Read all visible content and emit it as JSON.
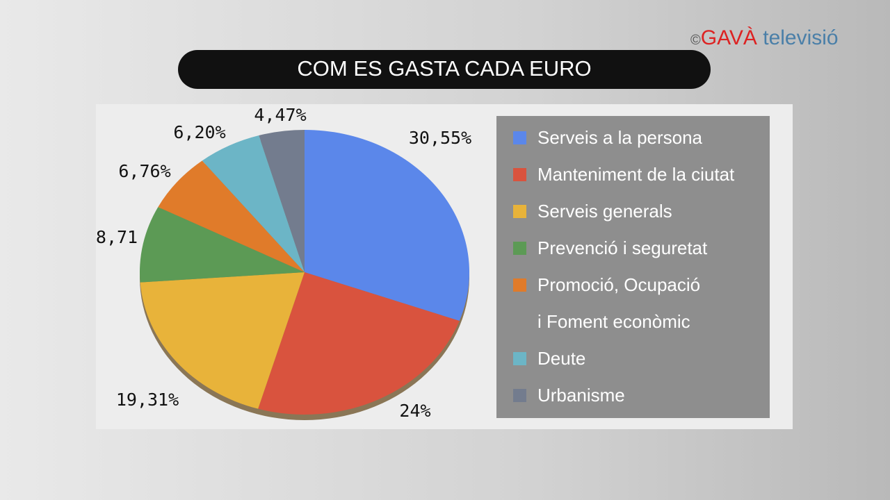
{
  "logo": {
    "symbol": "©",
    "brand": "GAVÀ",
    "suffix": "televisió"
  },
  "chart_data": {
    "type": "pie",
    "title": "COM ES GASTA CADA EURO",
    "categories": [
      "Serveis a la persona",
      "Manteniment de la ciutat",
      "Serveis generals",
      "Prevenció i seguretat",
      "Promoció, Ocupació i Foment econòmic",
      "Deute",
      "Urbanisme"
    ],
    "values": [
      30.55,
      24,
      19.31,
      8.71,
      6.76,
      6.2,
      4.47
    ],
    "value_labels": [
      "30,55%",
      "24%",
      "19,31%",
      "8,71",
      "6,76%",
      "6,20%",
      "4,47%"
    ],
    "colors": [
      "#5b87ea",
      "#d9533e",
      "#e8b33a",
      "#5c9a55",
      "#e07b2a",
      "#6cb5c6",
      "#737c8e"
    ],
    "legend": "right"
  }
}
